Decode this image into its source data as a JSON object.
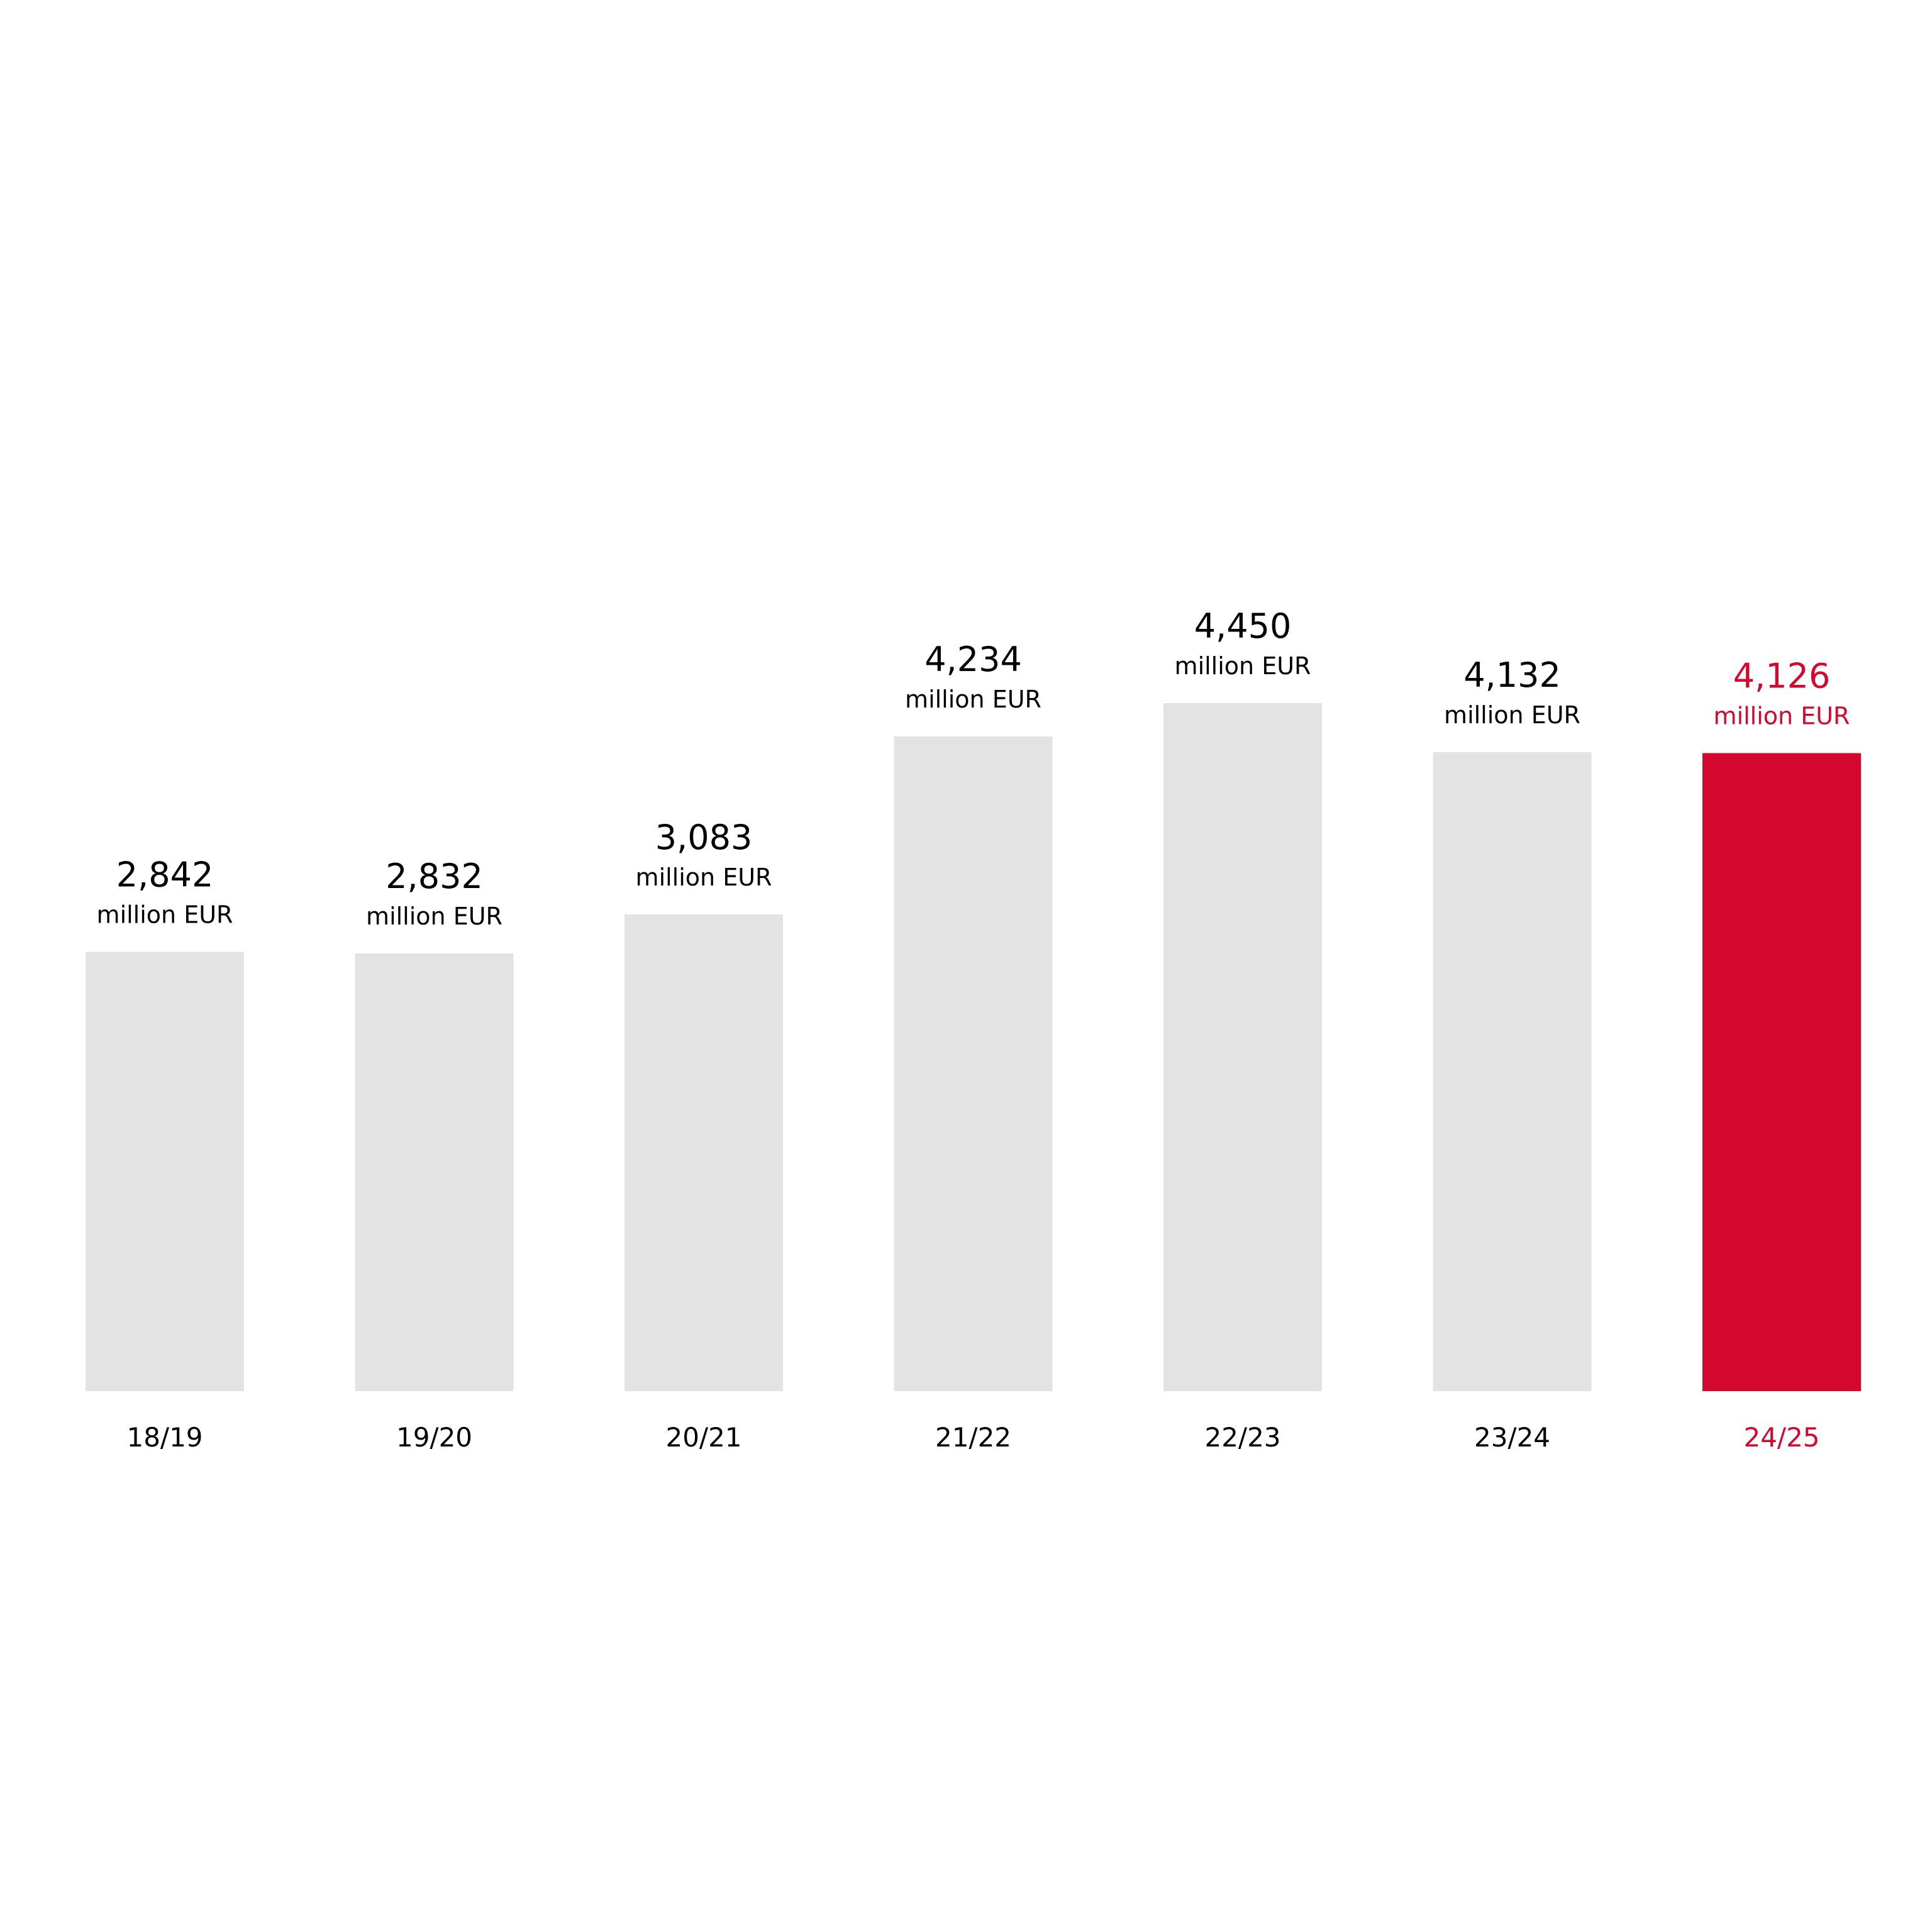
{
  "chart_data": {
    "type": "bar",
    "categories": [
      "18/19",
      "19/20",
      "20/21",
      "21/22",
      "22/23",
      "23/24",
      "24/25"
    ],
    "values": [
      2842,
      2832,
      3083,
      4234,
      4450,
      4132,
      4126
    ],
    "value_labels": [
      "2,842",
      "2,832",
      "3,083",
      "4,234",
      "4,450",
      "4,132",
      "4,126"
    ],
    "unit_label": "million EUR",
    "highlight_index": 6,
    "ylim": [
      0,
      4450
    ],
    "grid": false,
    "legend": "none",
    "colors": {
      "bar": "#e3e3e3",
      "highlight": "#d4072f",
      "text": "#000000",
      "highlight_text": "#d4072f",
      "background": "#ffffff"
    }
  }
}
